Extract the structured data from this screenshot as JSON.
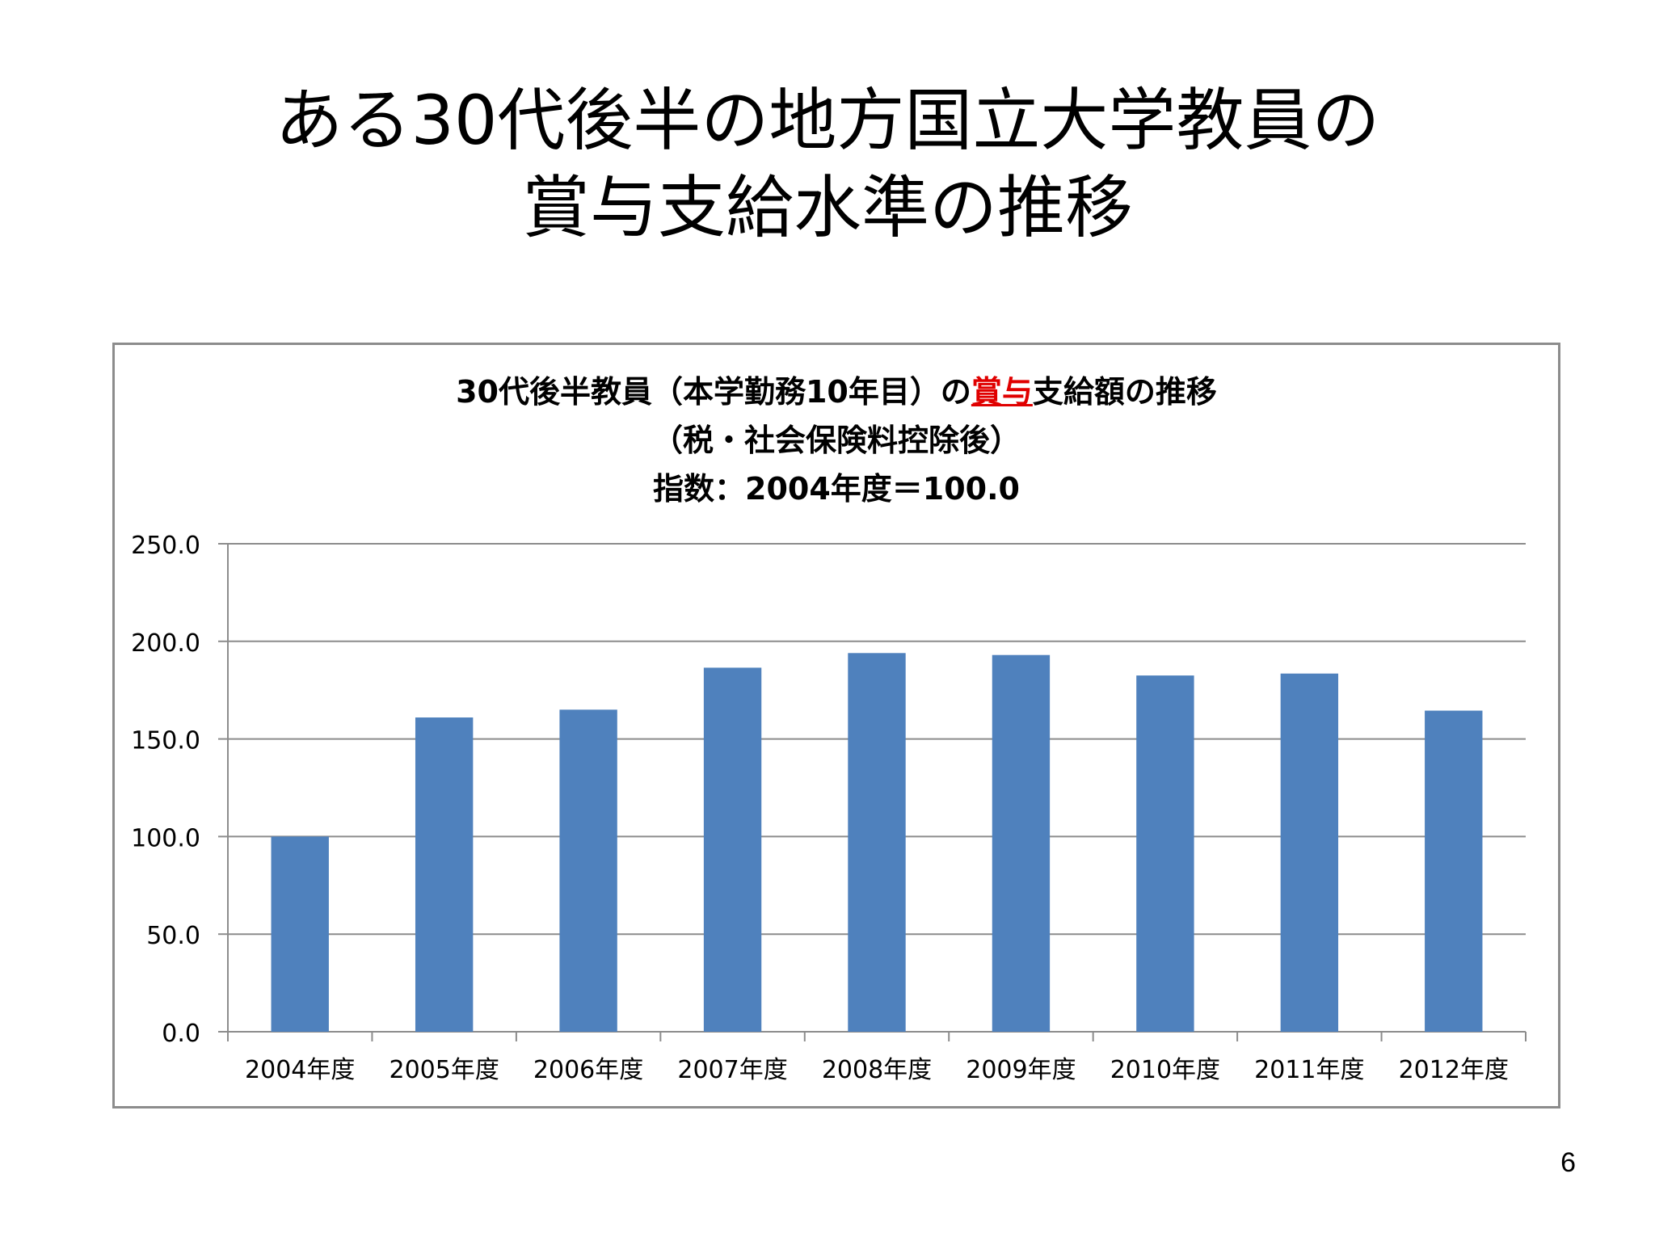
{
  "slide": {
    "title_line1": "ある30代後半の地方国立大学教員の",
    "title_line2": "賞与支給水準の推移",
    "page_number": "6"
  },
  "chart_data": {
    "type": "bar",
    "title_line1_before": "30代後半教員（本学勤務10年目）の",
    "title_line1_highlight": "賞与",
    "title_line1_after": "支給額の推移",
    "title_line2": "（税・社会保険料控除後）",
    "title_line3": "指数：2004年度＝100.0",
    "highlight_color": "#e00000",
    "bar_color": "#4f81bd",
    "gridline_color": "#8c8c8c",
    "categories": [
      "2004年度",
      "2005年度",
      "2006年度",
      "2007年度",
      "2008年度",
      "2009年度",
      "2010年度",
      "2011年度",
      "2012年度"
    ],
    "values": [
      100.0,
      161.0,
      165.0,
      186.5,
      194.0,
      193.0,
      182.5,
      183.5,
      164.5
    ],
    "y_ticks": [
      "0.0",
      "50.0",
      "100.0",
      "150.0",
      "200.0",
      "250.0"
    ],
    "ylim": [
      0,
      250
    ],
    "grid": true,
    "legend": "none"
  }
}
